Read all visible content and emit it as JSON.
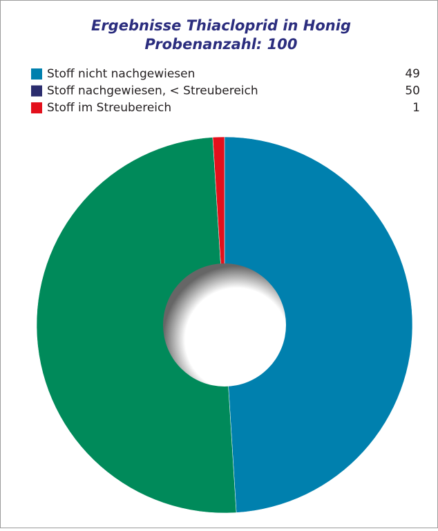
{
  "chart_data": {
    "type": "donut",
    "title": "Ergebnisse Thiacloprid in Honig",
    "subtitle": "Probenanzahl: 100",
    "categories": [
      "Stoff nicht nachgewiesen",
      "Stoff nachgewiesen, < Streubereich",
      "Stoff im Streubereich"
    ],
    "values": [
      49,
      50,
      1
    ],
    "colors": [
      "#0080ae",
      "#008a5a",
      "#e3101c"
    ],
    "legend_colors": [
      "#0080ae",
      "#2b2d6e",
      "#e3101c"
    ],
    "legend": "top"
  }
}
